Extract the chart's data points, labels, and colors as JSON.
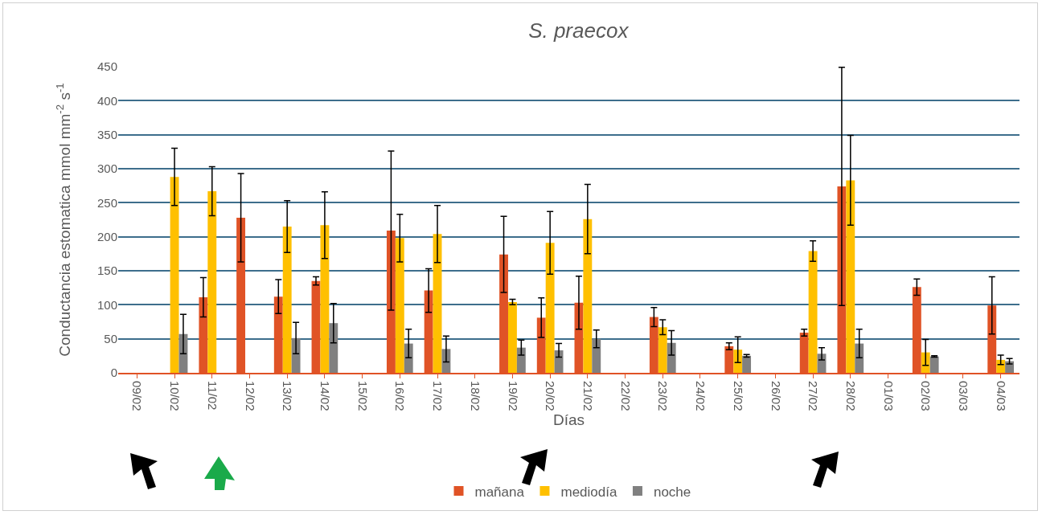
{
  "chart_data": {
    "type": "bar",
    "title": "S. praecox",
    "xlabel": "Días",
    "ylabel": "Conductancia estomatica mmol mm$^{-2}$ s$^{-1}$",
    "categories": [
      "09/02",
      "10/02",
      "11/02",
      "12/02",
      "13/02",
      "14/02",
      "15/02",
      "16/02",
      "17/02",
      "18/02",
      "19/02",
      "20/02",
      "21/02",
      "22/02",
      "23/02",
      "24/02",
      "25/02",
      "26/02",
      "27/02",
      "28/02",
      "01/03",
      "02/03",
      "03/03",
      "04/03"
    ],
    "series": [
      {
        "name": "mañana",
        "color": "#e05326",
        "values": [
          null,
          null,
          111,
          228,
          112,
          135,
          null,
          209,
          121,
          null,
          174,
          81,
          103,
          null,
          82,
          null,
          39,
          null,
          59,
          274,
          null,
          126,
          null,
          99
        ],
        "errors": [
          null,
          null,
          29,
          65,
          25,
          6,
          null,
          117,
          32,
          null,
          56,
          29,
          39,
          null,
          14,
          null,
          5,
          null,
          5,
          175,
          null,
          12,
          null,
          42
        ]
      },
      {
        "name": "mediodía",
        "color": "#ffc000",
        "values": [
          null,
          288,
          267,
          null,
          215,
          217,
          null,
          198,
          204,
          null,
          104,
          191,
          226,
          null,
          67,
          null,
          34,
          null,
          179,
          283,
          null,
          30,
          null,
          19
        ],
        "errors": [
          null,
          42,
          36,
          null,
          38,
          49,
          null,
          35,
          42,
          null,
          4,
          46,
          51,
          null,
          11,
          null,
          19,
          null,
          15,
          66,
          null,
          19,
          null,
          7
        ]
      },
      {
        "name": "noche",
        "color": "#808080",
        "values": [
          null,
          57,
          null,
          null,
          51,
          73,
          null,
          43,
          35,
          null,
          37,
          33,
          50,
          null,
          44,
          null,
          25,
          null,
          28,
          43,
          null,
          24,
          null,
          17
        ],
        "errors": [
          null,
          29,
          null,
          null,
          23,
          29,
          null,
          21,
          19,
          null,
          11,
          10,
          13,
          null,
          18,
          null,
          2,
          null,
          9,
          21,
          null,
          1,
          null,
          4
        ]
      }
    ],
    "ylim": [
      0,
      450
    ],
    "yticks": [
      0,
      50,
      100,
      150,
      200,
      250,
      300,
      350,
      400,
      450
    ],
    "grid": "y",
    "legend": "bottom"
  }
}
